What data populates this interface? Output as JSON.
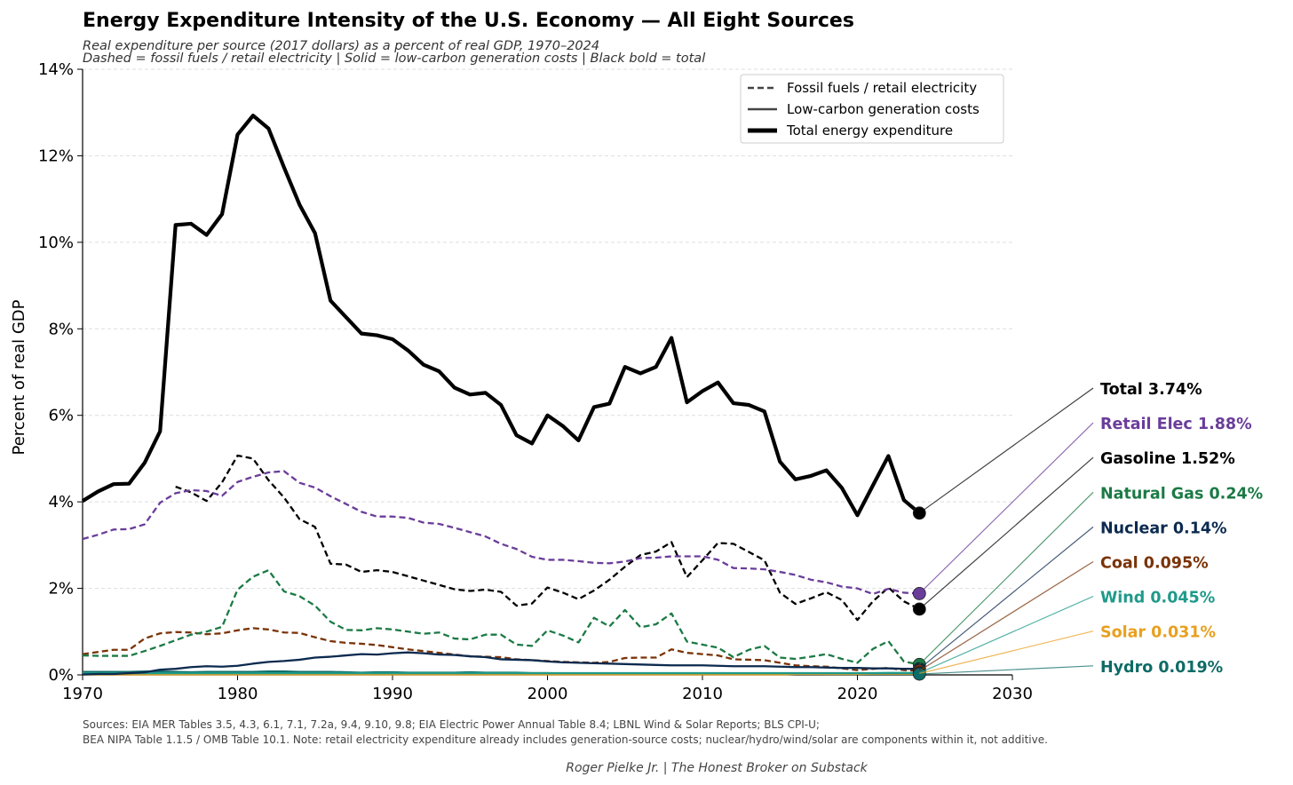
{
  "header": {
    "title": "Energy Expenditure Intensity of the U.S. Economy — All Eight Sources",
    "subtitle_1": "Real expenditure per source (2017 dollars) as a percent of real GDP, 1970–2024",
    "subtitle_2": "Dashed = fossil fuels / retail electricity  |  Solid = low-carbon generation costs  |  Black bold = total"
  },
  "footer": {
    "sources_1": "Sources: EIA MER Tables 3.5, 4.3, 6.1, 7.1, 7.2a, 9.4, 9.10, 9.8; EIA Electric Power Annual Table 8.4; LBNL Wind & Solar Reports; BLS CPI-U;",
    "sources_2": "BEA NIPA Table 1.1.5 / OMB Table 10.1.  Note: retail electricity expenditure already includes generation-source costs; nuclear/hydro/wind/solar are components within it, not additive.",
    "credit": "Roger Pielke Jr.  |  The Honest Broker on Substack"
  },
  "chart_data": {
    "type": "line",
    "ylabel": "Percent of real GDP",
    "xlim": [
      1970,
      2030
    ],
    "ylim": [
      0,
      14
    ],
    "x_ticks": [
      1970,
      1980,
      1990,
      2000,
      2010,
      2020,
      2030
    ],
    "y_ticks": [
      0,
      2,
      4,
      6,
      8,
      10,
      12,
      14
    ],
    "y_tick_labels": [
      "0%",
      "2%",
      "4%",
      "6%",
      "8%",
      "10%",
      "12%",
      "14%"
    ],
    "grid": "horizontal dashed",
    "legend_position": "top-right",
    "legend": [
      {
        "label": "Fossil fuels / retail electricity",
        "style": "dashed"
      },
      {
        "label": "Low-carbon generation costs",
        "style": "solid"
      },
      {
        "label": "Total energy expenditure",
        "style": "bold"
      }
    ],
    "x": [
      1970,
      1971,
      1972,
      1973,
      1974,
      1975,
      1976,
      1977,
      1978,
      1979,
      1980,
      1981,
      1982,
      1983,
      1984,
      1985,
      1986,
      1987,
      1988,
      1989,
      1990,
      1991,
      1992,
      1993,
      1994,
      1995,
      1996,
      1997,
      1998,
      1999,
      2000,
      2001,
      2002,
      2003,
      2004,
      2005,
      2006,
      2007,
      2008,
      2009,
      2010,
      2011,
      2012,
      2013,
      2014,
      2015,
      2016,
      2017,
      2018,
      2019,
      2020,
      2021,
      2022,
      2023,
      2024
    ],
    "series": [
      {
        "key": "total",
        "label": "Total  3.74%",
        "color": "#000000",
        "style": "bold",
        "values": [
          4.02,
          4.24,
          4.41,
          4.42,
          4.9,
          5.63,
          10.4,
          10.43,
          10.17,
          10.65,
          12.49,
          12.93,
          12.63,
          11.73,
          10.87,
          10.21,
          8.65,
          8.27,
          7.89,
          7.85,
          7.76,
          7.5,
          7.17,
          7.02,
          6.64,
          6.48,
          6.52,
          6.24,
          5.54,
          5.35,
          6.0,
          5.75,
          5.42,
          6.19,
          6.27,
          7.12,
          6.97,
          7.12,
          7.79,
          6.3,
          6.56,
          6.76,
          6.28,
          6.24,
          6.09,
          4.93,
          4.52,
          4.6,
          4.73,
          4.32,
          3.69,
          4.38,
          5.06,
          4.04,
          3.74
        ]
      },
      {
        "key": "retail_elec",
        "label": "Retail Elec  1.88%",
        "color": "#6a3d9a",
        "style": "dashed",
        "values": [
          3.14,
          3.24,
          3.36,
          3.37,
          3.48,
          3.98,
          4.2,
          4.27,
          4.25,
          4.14,
          4.46,
          4.58,
          4.68,
          4.71,
          4.44,
          4.33,
          4.13,
          3.95,
          3.77,
          3.66,
          3.66,
          3.63,
          3.52,
          3.49,
          3.4,
          3.3,
          3.2,
          3.03,
          2.91,
          2.73,
          2.66,
          2.66,
          2.63,
          2.59,
          2.58,
          2.62,
          2.7,
          2.71,
          2.74,
          2.74,
          2.74,
          2.66,
          2.47,
          2.46,
          2.44,
          2.38,
          2.31,
          2.2,
          2.14,
          2.04,
          2.0,
          1.87,
          1.99,
          1.9,
          1.88
        ]
      },
      {
        "key": "gasoline",
        "label": "Gasoline  1.52%",
        "color": "#000000",
        "style": "dashed",
        "values": [
          null,
          null,
          null,
          null,
          null,
          null,
          4.35,
          4.22,
          4.02,
          4.45,
          5.07,
          5.0,
          4.5,
          4.1,
          3.6,
          3.42,
          2.57,
          2.55,
          2.38,
          2.42,
          2.38,
          2.28,
          2.18,
          2.08,
          1.98,
          1.94,
          1.97,
          1.92,
          1.6,
          1.65,
          2.02,
          1.9,
          1.75,
          1.95,
          2.2,
          2.5,
          2.77,
          2.85,
          3.07,
          2.26,
          2.65,
          3.05,
          3.03,
          2.84,
          2.65,
          1.9,
          1.64,
          1.77,
          1.91,
          1.73,
          1.27,
          1.7,
          2.02,
          1.7,
          1.52
        ]
      },
      {
        "key": "natural_gas",
        "label": "Natural Gas  0.24%",
        "color": "#1b7a45",
        "style": "dashed",
        "values": [
          0.45,
          0.44,
          0.44,
          0.44,
          0.55,
          0.67,
          0.8,
          0.93,
          1.0,
          1.11,
          1.97,
          2.27,
          2.42,
          1.93,
          1.82,
          1.6,
          1.23,
          1.04,
          1.03,
          1.08,
          1.05,
          1.0,
          0.95,
          0.98,
          0.84,
          0.82,
          0.93,
          0.93,
          0.7,
          0.67,
          1.03,
          0.91,
          0.75,
          1.32,
          1.12,
          1.5,
          1.1,
          1.17,
          1.42,
          0.77,
          0.7,
          0.63,
          0.41,
          0.58,
          0.67,
          0.4,
          0.37,
          0.42,
          0.48,
          0.37,
          0.28,
          0.6,
          0.78,
          0.31,
          0.24
        ]
      },
      {
        "key": "nuclear",
        "label": "Nuclear  0.14%",
        "color": "#0c2a4f",
        "style": "solid",
        "values": [
          0.01,
          0.02,
          0.02,
          0.04,
          0.06,
          0.12,
          0.14,
          0.18,
          0.2,
          0.19,
          0.21,
          0.26,
          0.3,
          0.32,
          0.35,
          0.4,
          0.42,
          0.45,
          0.48,
          0.47,
          0.5,
          0.52,
          0.5,
          0.47,
          0.46,
          0.43,
          0.41,
          0.36,
          0.35,
          0.34,
          0.31,
          0.29,
          0.28,
          0.27,
          0.26,
          0.25,
          0.24,
          0.23,
          0.22,
          0.22,
          0.22,
          0.21,
          0.2,
          0.2,
          0.2,
          0.19,
          0.18,
          0.18,
          0.17,
          0.16,
          0.16,
          0.15,
          0.15,
          0.14,
          0.14
        ]
      },
      {
        "key": "coal",
        "label": "Coal  0.095%",
        "color": "#7a3307",
        "style": "dashed",
        "values": [
          0.48,
          0.53,
          0.58,
          0.58,
          0.84,
          0.96,
          0.99,
          0.98,
          0.94,
          0.96,
          1.03,
          1.08,
          1.05,
          0.98,
          0.97,
          0.87,
          0.78,
          0.74,
          0.72,
          0.69,
          0.64,
          0.59,
          0.55,
          0.51,
          0.47,
          0.43,
          0.42,
          0.41,
          0.36,
          0.34,
          0.32,
          0.3,
          0.29,
          0.28,
          0.3,
          0.39,
          0.4,
          0.4,
          0.59,
          0.51,
          0.48,
          0.45,
          0.36,
          0.35,
          0.34,
          0.28,
          0.22,
          0.2,
          0.19,
          0.15,
          0.11,
          0.14,
          0.16,
          0.11,
          0.095
        ]
      },
      {
        "key": "wind",
        "label": "Wind  0.045%",
        "color": "#1f9a8a",
        "style": "solid",
        "values": [
          0.04,
          0.04,
          0.04,
          0.04,
          0.04,
          0.04,
          0.04,
          0.04,
          0.04,
          0.04,
          0.04,
          0.04,
          0.04,
          0.04,
          0.04,
          0.04,
          0.04,
          0.04,
          0.04,
          0.04,
          0.04,
          0.04,
          0.04,
          0.04,
          0.04,
          0.04,
          0.04,
          0.04,
          0.04,
          0.04,
          0.04,
          0.04,
          0.04,
          0.04,
          0.04,
          0.04,
          0.04,
          0.04,
          0.04,
          0.04,
          0.04,
          0.04,
          0.04,
          0.04,
          0.04,
          0.04,
          0.04,
          0.04,
          0.04,
          0.04,
          0.04,
          0.04,
          0.045,
          0.045,
          0.045
        ]
      },
      {
        "key": "solar",
        "label": "Solar  0.031%",
        "color": "#e8a020",
        "style": "solid",
        "values": [
          0.01,
          0.01,
          0.01,
          0.01,
          0.01,
          0.01,
          0.01,
          0.01,
          0.01,
          0.01,
          0.01,
          0.01,
          0.01,
          0.01,
          0.01,
          0.01,
          0.01,
          0.01,
          0.01,
          0.01,
          0.01,
          0.01,
          0.01,
          0.01,
          0.01,
          0.01,
          0.01,
          0.01,
          0.01,
          0.01,
          0.01,
          0.01,
          0.01,
          0.01,
          0.01,
          0.01,
          0.01,
          0.01,
          0.01,
          0.01,
          0.01,
          0.01,
          0.01,
          0.01,
          0.01,
          0.01,
          0.02,
          0.02,
          0.02,
          0.02,
          0.02,
          0.025,
          0.03,
          0.03,
          0.031
        ]
      },
      {
        "key": "hydro",
        "label": "Hydro  0.019%",
        "color": "#0e6b66",
        "style": "solid",
        "values": [
          0.07,
          0.07,
          0.07,
          0.07,
          0.08,
          0.08,
          0.07,
          0.06,
          0.07,
          0.07,
          0.07,
          0.07,
          0.08,
          0.08,
          0.07,
          0.07,
          0.07,
          0.06,
          0.05,
          0.06,
          0.06,
          0.05,
          0.05,
          0.05,
          0.05,
          0.06,
          0.05,
          0.05,
          0.05,
          0.04,
          0.04,
          0.03,
          0.03,
          0.03,
          0.03,
          0.03,
          0.03,
          0.03,
          0.03,
          0.03,
          0.03,
          0.03,
          0.03,
          0.03,
          0.03,
          0.03,
          0.03,
          0.03,
          0.02,
          0.02,
          0.02,
          0.02,
          0.02,
          0.02,
          0.019
        ]
      }
    ]
  }
}
